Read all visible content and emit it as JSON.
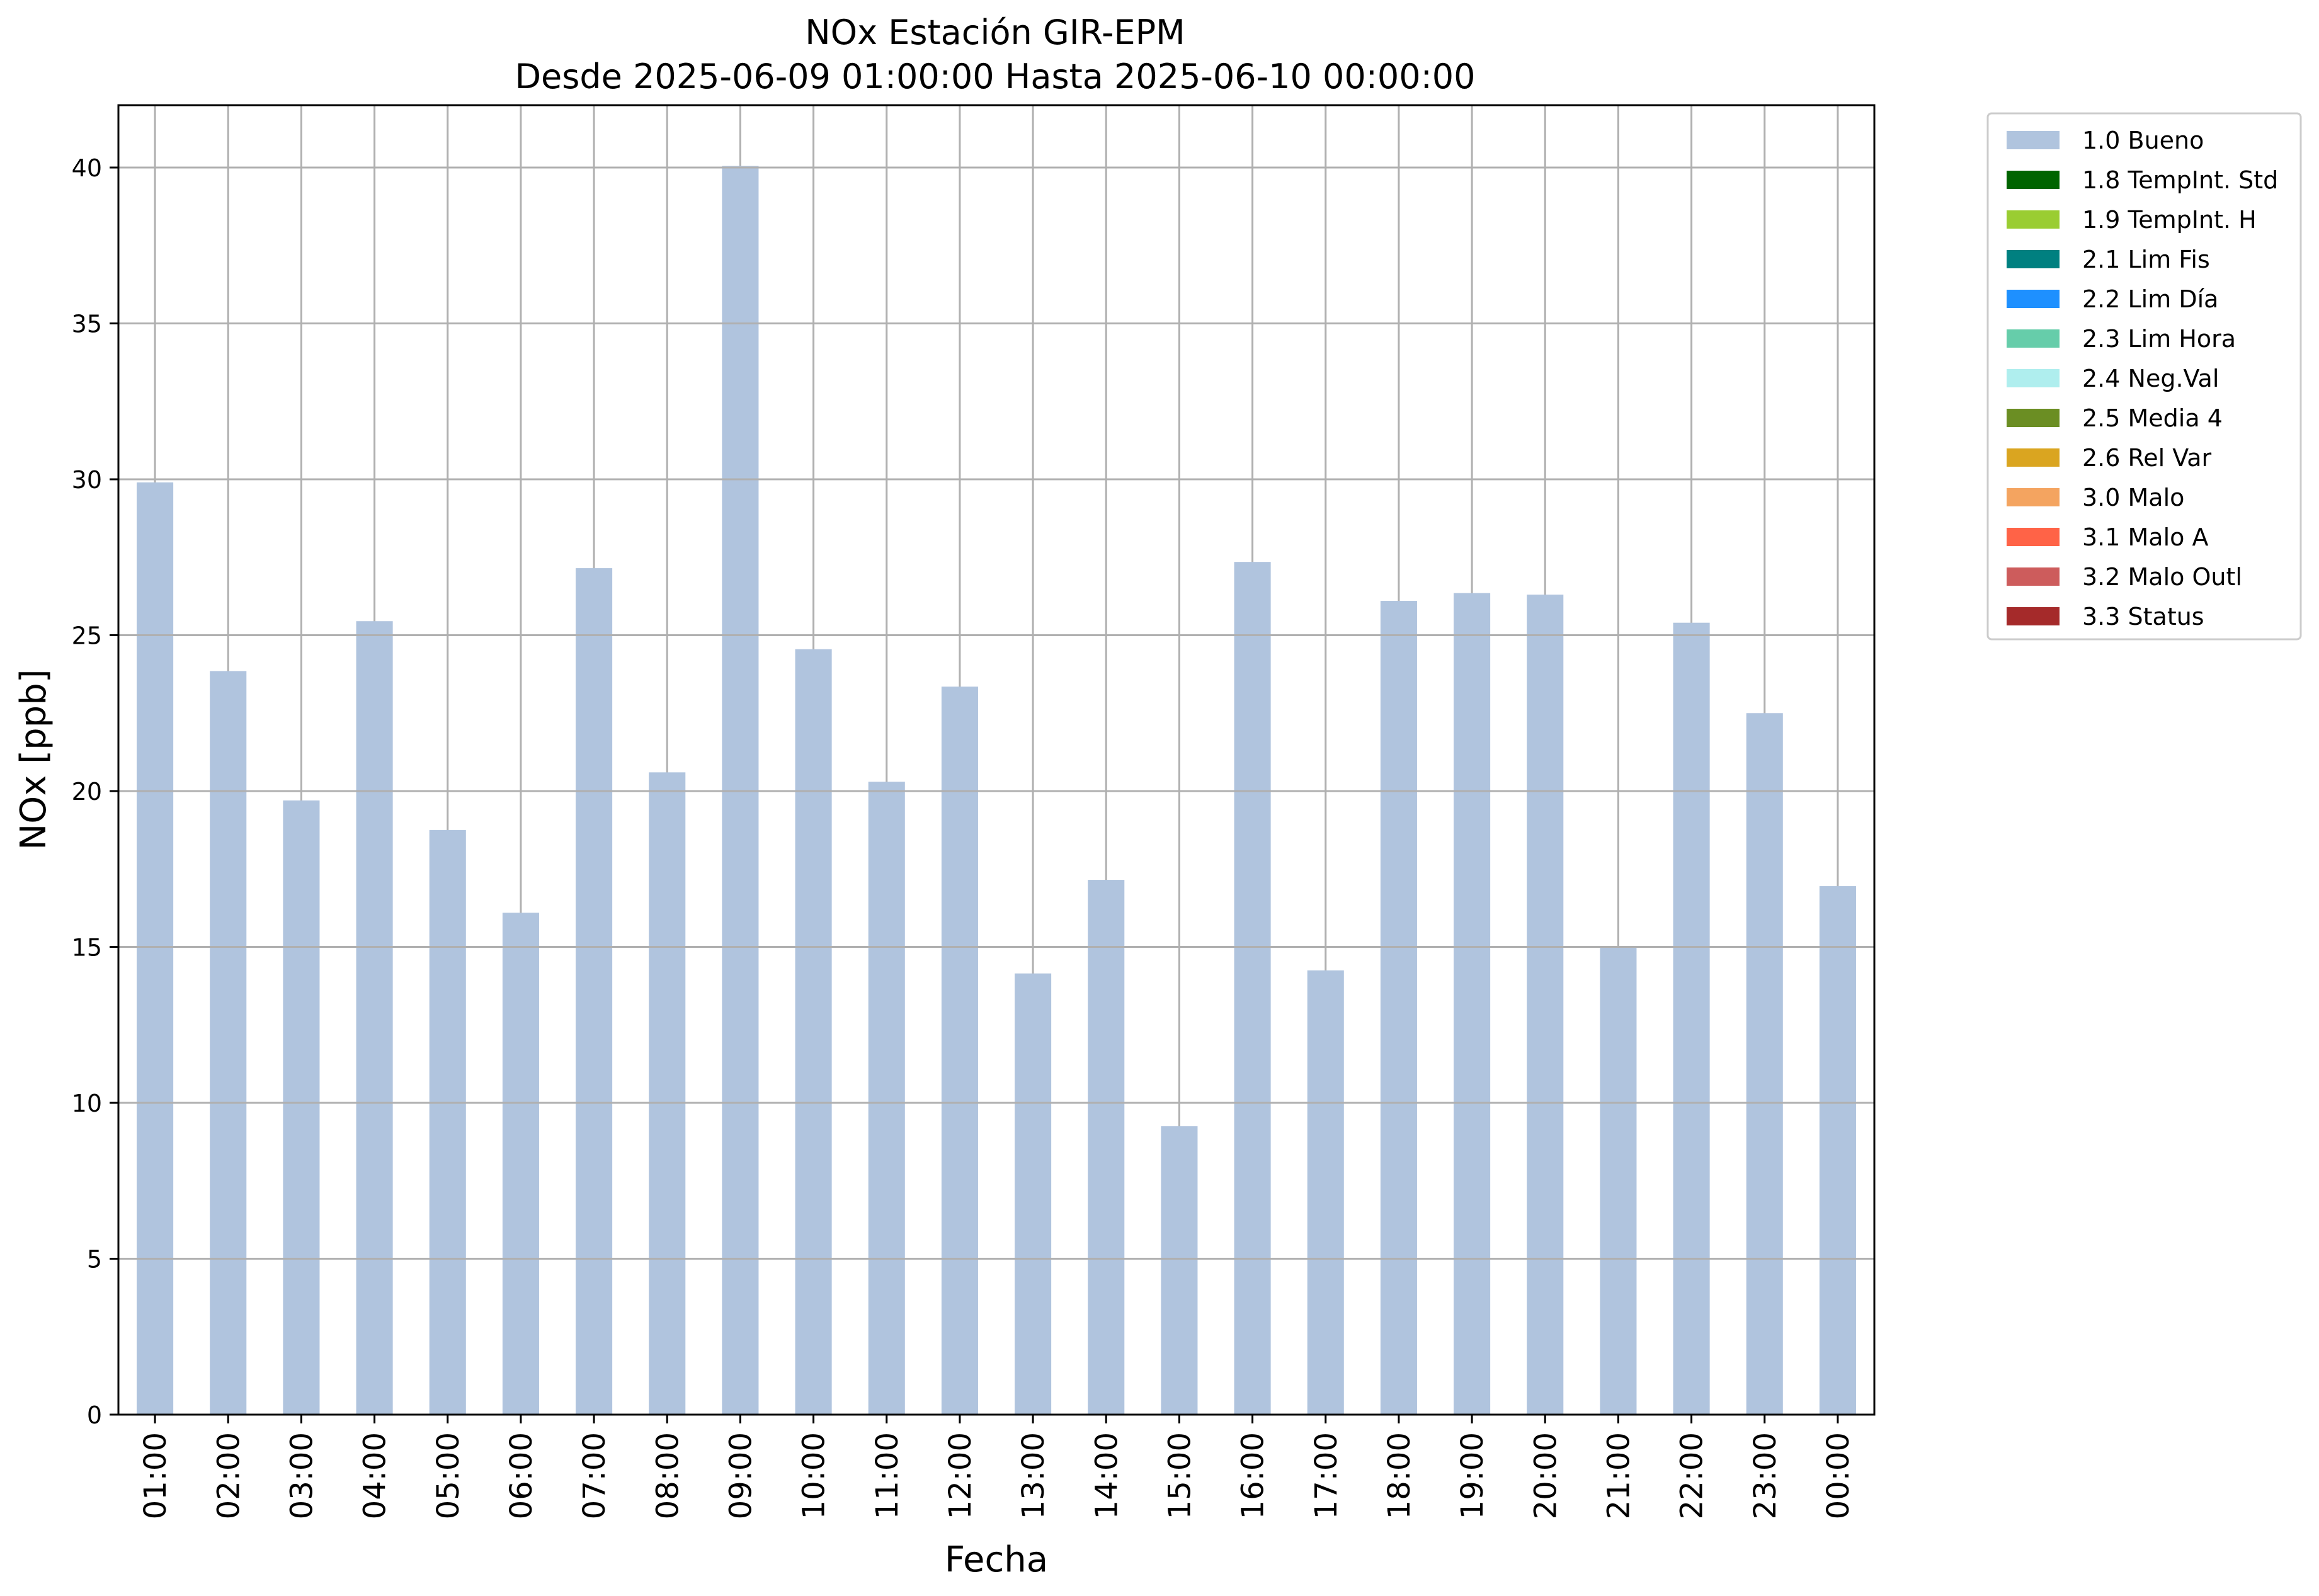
{
  "chart_data": {
    "type": "bar",
    "title": "NOx Estación GIR-EPM",
    "subtitle": "Desde 2025-06-09 01:00:00 Hasta 2025-06-10 00:00:00",
    "xlabel": "Fecha",
    "ylabel": "NOx [ppb]",
    "ylim": [
      0,
      42
    ],
    "yticks": [
      0,
      5,
      10,
      15,
      20,
      25,
      30,
      35,
      40
    ],
    "grid": true,
    "legend_position": "outside-top-right",
    "categories": [
      "01:00",
      "02:00",
      "03:00",
      "04:00",
      "05:00",
      "06:00",
      "07:00",
      "08:00",
      "09:00",
      "10:00",
      "11:00",
      "12:00",
      "13:00",
      "14:00",
      "15:00",
      "16:00",
      "17:00",
      "18:00",
      "19:00",
      "20:00",
      "21:00",
      "22:00",
      "23:00",
      "00:00"
    ],
    "series": [
      {
        "name": "1.0 Bueno",
        "color": "#b0c4de",
        "values": [
          29.9,
          23.85,
          19.7,
          25.45,
          18.75,
          16.1,
          27.15,
          20.6,
          40.05,
          24.55,
          20.3,
          23.35,
          14.15,
          17.15,
          9.25,
          27.35,
          14.25,
          26.1,
          26.35,
          26.3,
          15.0,
          25.4,
          22.5,
          16.95
        ]
      }
    ],
    "legend": [
      {
        "label": "1.0 Bueno",
        "color": "#b0c4de"
      },
      {
        "label": "1.8 TempInt. Std",
        "color": "#006400"
      },
      {
        "label": "1.9 TempInt. H",
        "color": "#9acd32"
      },
      {
        "label": "2.1 Lim Fis",
        "color": "#008080"
      },
      {
        "label": "2.2 Lim Día",
        "color": "#1e90ff"
      },
      {
        "label": "2.3 Lim Hora",
        "color": "#66cdaa"
      },
      {
        "label": "2.4 Neg.Val",
        "color": "#afeeee"
      },
      {
        "label": "2.5 Media 4",
        "color": "#6b8e23"
      },
      {
        "label": "2.6 Rel Var",
        "color": "#daa520"
      },
      {
        "label": "3.0 Malo",
        "color": "#f4a460"
      },
      {
        "label": "3.1 Malo A",
        "color": "#ff6347"
      },
      {
        "label": "3.2 Malo Outl",
        "color": "#cd5c5c"
      },
      {
        "label": "3.3 Status",
        "color": "#a52a2a"
      }
    ]
  }
}
